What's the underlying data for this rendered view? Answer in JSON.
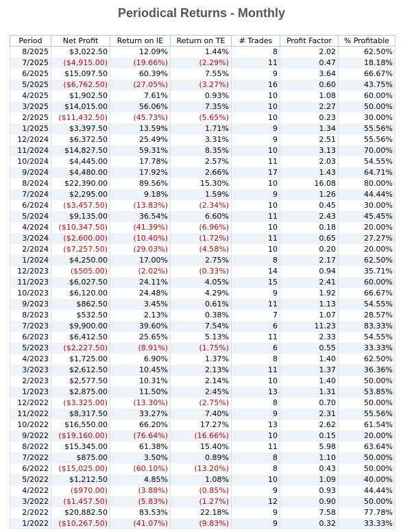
{
  "title": "Periodical Returns - Monthly",
  "table": {
    "columns": [
      "Period",
      "Net Profit",
      "Return on IE",
      "Return on TE",
      "# Trades",
      "Profit Factor",
      "% Profitable"
    ],
    "rows": [
      [
        "8/2025",
        "$3,022.50",
        "12.09%",
        "1.44%",
        "8",
        "2.02",
        "62.50%"
      ],
      [
        "7/2025",
        "($4,915.00)",
        "(19.66%)",
        "(2.29%)",
        "11",
        "0.47",
        "18.18%"
      ],
      [
        "6/2025",
        "$15,097.50",
        "60.39%",
        "7.55%",
        "9",
        "3.64",
        "66.67%"
      ],
      [
        "5/2025",
        "($6,762.50)",
        "(27.05%)",
        "(3.27%)",
        "16",
        "0.60",
        "43.75%"
      ],
      [
        "4/2025",
        "$1,902.50",
        "7.61%",
        "0.93%",
        "10",
        "1.08",
        "60.00%"
      ],
      [
        "3/2025",
        "$14,015.00",
        "56.06%",
        "7.35%",
        "10",
        "2.27",
        "50.00%"
      ],
      [
        "2/2025",
        "($11,432.50)",
        "(45.73%)",
        "(5.65%)",
        "10",
        "0.23",
        "30.00%"
      ],
      [
        "1/2025",
        "$3,397.50",
        "13.59%",
        "1.71%",
        "9",
        "1.34",
        "55.56%"
      ],
      [
        "12/2024",
        "$6,372.50",
        "25.49%",
        "3.31%",
        "9",
        "2.51",
        "55.56%"
      ],
      [
        "11/2024",
        "$14,827.50",
        "59.31%",
        "8.35%",
        "10",
        "3.13",
        "70.00%"
      ],
      [
        "10/2024",
        "$4,445.00",
        "17.78%",
        "2.57%",
        "11",
        "2.03",
        "54.55%"
      ],
      [
        "9/2024",
        "$4,480.00",
        "17.92%",
        "2.66%",
        "17",
        "1.43",
        "64.71%"
      ],
      [
        "8/2024",
        "$22,390.00",
        "89.56%",
        "15.30%",
        "10",
        "16.08",
        "80.00%"
      ],
      [
        "7/2024",
        "$2,295.00",
        "9.18%",
        "1.59%",
        "9",
        "1.26",
        "44.44%"
      ],
      [
        "6/2024",
        "($3,457.50)",
        "(13.83%)",
        "(2.34%)",
        "10",
        "0.45",
        "30.00%"
      ],
      [
        "5/2024",
        "$9,135.00",
        "36.54%",
        "6.60%",
        "11",
        "2.43",
        "45.45%"
      ],
      [
        "4/2024",
        "($10,347.50)",
        "(41.39%)",
        "(6.96%)",
        "10",
        "0.18",
        "20.00%"
      ],
      [
        "3/2024",
        "($2,600.00)",
        "(10.40%)",
        "(1.72%)",
        "11",
        "0.65",
        "27.27%"
      ],
      [
        "2/2024",
        "($7,257.50)",
        "(29.03%)",
        "(4.58%)",
        "10",
        "0.20",
        "20.00%"
      ],
      [
        "1/2024",
        "$4,250.00",
        "17.00%",
        "2.75%",
        "8",
        "2.17",
        "62.50%"
      ],
      [
        "12/2023",
        "($505.00)",
        "(2.02%)",
        "(0.33%)",
        "14",
        "0.94",
        "35.71%"
      ],
      [
        "11/2023",
        "$6,027.50",
        "24.11%",
        "4.05%",
        "15",
        "2.41",
        "60.00%"
      ],
      [
        "10/2023",
        "$6,120.00",
        "24.48%",
        "4.29%",
        "9",
        "1.92",
        "66.67%"
      ],
      [
        "9/2023",
        "$862.50",
        "3.45%",
        "0.61%",
        "11",
        "1.13",
        "54.55%"
      ],
      [
        "8/2023",
        "$532.50",
        "2.13%",
        "0.38%",
        "7",
        "1.07",
        "28.57%"
      ],
      [
        "7/2023",
        "$9,900.00",
        "39.60%",
        "7.54%",
        "6",
        "11.23",
        "83.33%"
      ],
      [
        "6/2023",
        "$6,412.50",
        "25.65%",
        "5.13%",
        "11",
        "2.33",
        "54.55%"
      ],
      [
        "5/2023",
        "($2,227.50)",
        "(8.91%)",
        "(1.75%)",
        "6",
        "0.55",
        "33.33%"
      ],
      [
        "4/2023",
        "$1,725.00",
        "6.90%",
        "1.37%",
        "8",
        "1.40",
        "62.50%"
      ],
      [
        "3/2023",
        "$2,612.50",
        "10.45%",
        "2.13%",
        "11",
        "1.37",
        "36.36%"
      ],
      [
        "2/2023",
        "$2,577.50",
        "10.31%",
        "2.14%",
        "10",
        "1.40",
        "50.00%"
      ],
      [
        "1/2023",
        "$2,875.00",
        "11.50%",
        "2.45%",
        "13",
        "1.31",
        "53.85%"
      ],
      [
        "12/2022",
        "($3,325.00)",
        "(13.30%)",
        "(2.75%)",
        "8",
        "0.70",
        "50.00%"
      ],
      [
        "11/2022",
        "$8,317.50",
        "33.27%",
        "7.40%",
        "9",
        "2.31",
        "55.56%"
      ],
      [
        "10/2022",
        "$16,550.00",
        "66.20%",
        "17.27%",
        "13",
        "2.62",
        "61.54%"
      ],
      [
        "9/2022",
        "($19,160.00)",
        "(76.64%)",
        "(16.66%)",
        "10",
        "0.15",
        "20.00%"
      ],
      [
        "8/2022",
        "$15,345.00",
        "61.38%",
        "15.40%",
        "11",
        "5.98",
        "63.64%"
      ],
      [
        "7/2022",
        "$875.00",
        "3.50%",
        "0.89%",
        "8",
        "1.10",
        "50.00%"
      ],
      [
        "6/2022",
        "($15,025.00)",
        "(60.10%)",
        "(13.20%)",
        "8",
        "0.43",
        "50.00%"
      ],
      [
        "5/2022",
        "$1,212.50",
        "4.85%",
        "1.08%",
        "10",
        "1.09",
        "40.00%"
      ],
      [
        "4/2022",
        "($970.00)",
        "(3.88%)",
        "(0.85%)",
        "9",
        "0.93",
        "44.44%"
      ],
      [
        "3/2022",
        "($1,457.50)",
        "(5.83%)",
        "(1.27%)",
        "12",
        "0.90",
        "50.00%"
      ],
      [
        "2/2022",
        "$20,882.50",
        "83.53%",
        "22.18%",
        "9",
        "7.58",
        "77.78%"
      ],
      [
        "1/2022",
        "($10,267.50)",
        "(41.07%)",
        "(9.83%)",
        "9",
        "0.32",
        "33.33%"
      ]
    ]
  }
}
